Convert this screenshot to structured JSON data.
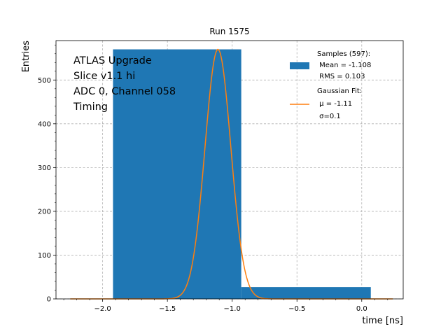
{
  "chart_data": {
    "type": "histogram",
    "title": "Run 1575",
    "xlabel": "time [ns]",
    "ylabel": "Entries",
    "xlim": [
      -2.36,
      0.32
    ],
    "ylim": [
      0,
      590
    ],
    "xticks": [
      -2.0,
      -1.5,
      -1.0,
      -0.5,
      0.0
    ],
    "xtick_labels": [
      "−2.0",
      "−1.5",
      "−1.0",
      "−0.5",
      "0.0"
    ],
    "yticks": [
      0,
      100,
      200,
      300,
      400,
      500
    ],
    "ytick_labels": [
      "0",
      "100",
      "200",
      "300",
      "400",
      "500"
    ],
    "grid": true,
    "bins": [
      {
        "x0": -1.92,
        "x1": -0.93,
        "count": 570
      },
      {
        "x0": -0.93,
        "x1": 0.07,
        "count": 27
      }
    ],
    "fit": {
      "type": "gaussian",
      "mu": -1.11,
      "sigma": 0.1,
      "amplitude": 570,
      "x_range": [
        -2.25,
        0.24
      ]
    },
    "colors": {
      "histogram": "#1f77b4",
      "fit": "#ff7f0e"
    },
    "annotation_lines": [
      "ATLAS Upgrade",
      "Slice v1.1 hi",
      "ADC 0, Channel 058",
      "Timing"
    ],
    "legend": {
      "placement": "top-right",
      "histogram_lines": [
        "Samples (597):",
        " Mean = -1.108",
        " RMS = 0.103"
      ],
      "fit_lines": [
        "Gaussian Fit:",
        " μ = -1.11",
        " σ=0.1"
      ]
    }
  }
}
